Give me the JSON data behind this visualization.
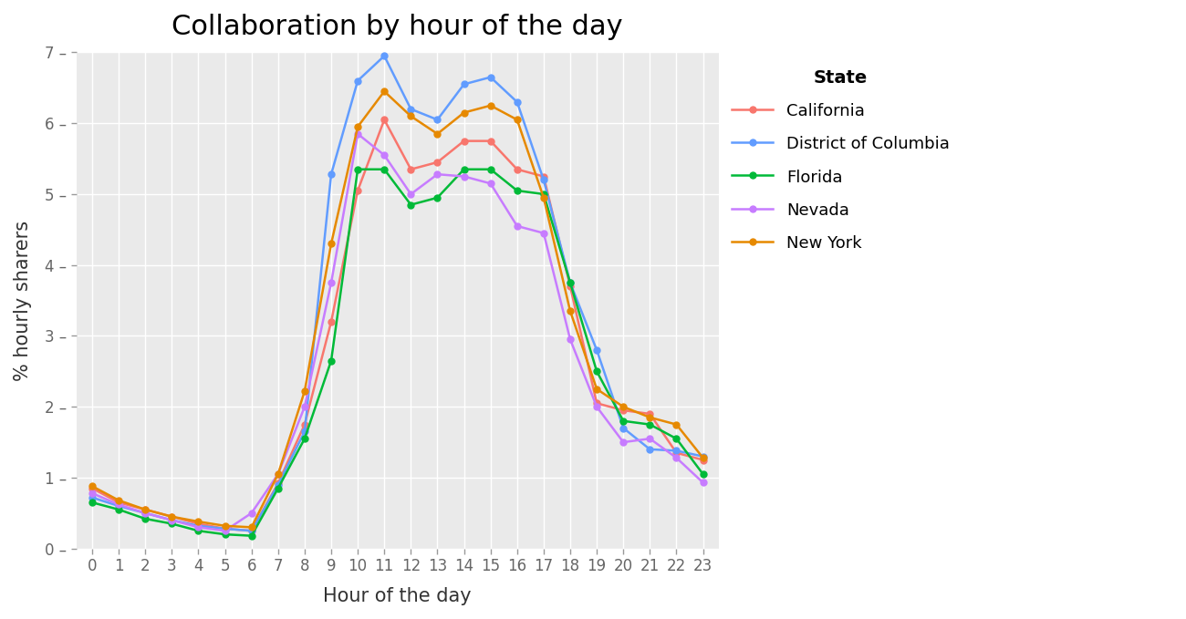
{
  "title": "Collaboration by hour of the day",
  "xlabel": "Hour of the day",
  "ylabel": "% hourly sharers",
  "hours": [
    0,
    1,
    2,
    3,
    4,
    5,
    6,
    7,
    8,
    9,
    10,
    11,
    12,
    13,
    14,
    15,
    16,
    17,
    18,
    19,
    20,
    21,
    22,
    23
  ],
  "series": {
    "California": {
      "color": "#F8766D",
      "values": [
        0.85,
        0.65,
        0.55,
        0.45,
        0.35,
        0.28,
        0.25,
        0.92,
        1.75,
        3.2,
        5.05,
        6.05,
        5.35,
        5.45,
        5.75,
        5.75,
        5.35,
        5.25,
        3.7,
        2.05,
        1.95,
        1.9,
        1.35,
        1.25
      ]
    },
    "District of Columbia": {
      "color": "#619CFF",
      "values": [
        0.72,
        0.6,
        0.5,
        0.4,
        0.32,
        0.28,
        0.25,
        0.9,
        1.65,
        5.28,
        6.6,
        6.95,
        6.2,
        6.05,
        6.55,
        6.65,
        6.3,
        5.2,
        3.75,
        2.8,
        1.7,
        1.4,
        1.38,
        1.3
      ]
    },
    "Florida": {
      "color": "#00BA38",
      "values": [
        0.65,
        0.55,
        0.42,
        0.35,
        0.25,
        0.2,
        0.18,
        0.85,
        1.55,
        2.65,
        5.35,
        5.35,
        4.85,
        4.95,
        5.35,
        5.35,
        5.05,
        5.0,
        3.75,
        2.5,
        1.8,
        1.75,
        1.55,
        1.05
      ]
    },
    "Nevada": {
      "color": "#C77CFF",
      "values": [
        0.78,
        0.62,
        0.5,
        0.4,
        0.3,
        0.25,
        0.5,
        1.05,
        2.0,
        3.75,
        5.85,
        5.55,
        5.0,
        5.28,
        5.25,
        5.15,
        4.55,
        4.45,
        2.95,
        2.0,
        1.5,
        1.55,
        1.28,
        0.93
      ]
    },
    "New York": {
      "color": "#E68900",
      "values": [
        0.88,
        0.68,
        0.55,
        0.45,
        0.38,
        0.32,
        0.3,
        1.05,
        2.22,
        4.3,
        5.95,
        6.45,
        6.1,
        5.85,
        6.15,
        6.25,
        6.05,
        4.95,
        3.35,
        2.25,
        2.0,
        1.85,
        1.75,
        1.28
      ]
    }
  },
  "ylim": [
    0,
    7
  ],
  "yticks": [
    0,
    1,
    2,
    3,
    4,
    5,
    6,
    7
  ],
  "plot_bg_color": "#EAEAEA",
  "figure_bg_color": "#FFFFFF",
  "grid_color": "#FFFFFF",
  "title_fontsize": 22,
  "label_fontsize": 15,
  "tick_fontsize": 12,
  "legend_title": "State",
  "legend_title_fontsize": 14,
  "legend_fontsize": 13
}
